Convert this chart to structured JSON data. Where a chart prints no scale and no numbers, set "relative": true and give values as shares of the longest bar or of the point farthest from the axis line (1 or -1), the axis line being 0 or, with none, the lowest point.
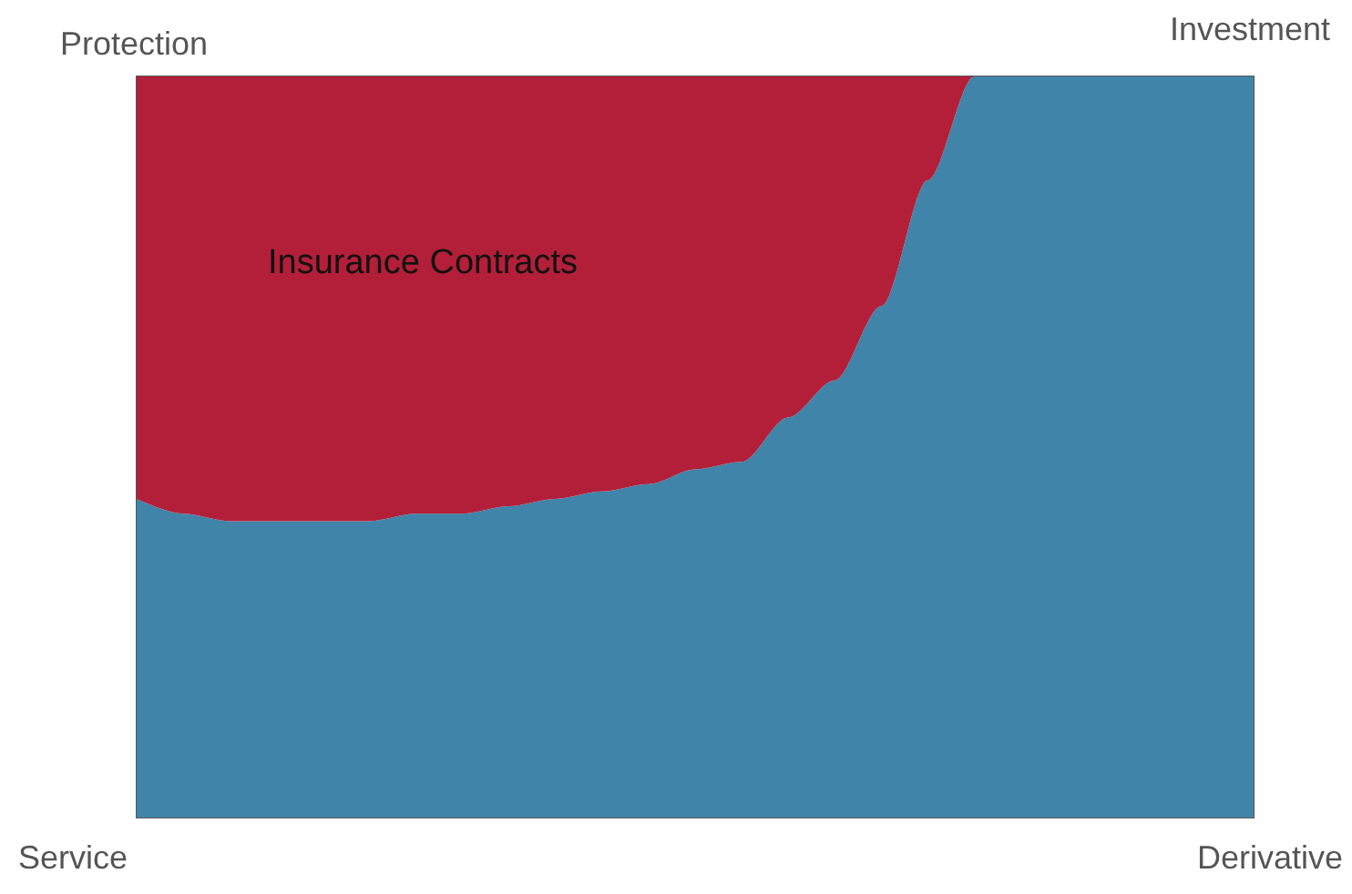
{
  "chart_data": {
    "type": "area",
    "relative": true,
    "stacked": true,
    "categories": [
      null,
      null,
      null,
      null,
      null,
      null,
      null,
      null,
      null,
      null,
      null,
      null,
      null,
      null,
      null,
      null,
      null,
      null,
      null,
      null,
      null,
      null,
      null,
      null,
      null
    ],
    "series": [
      {
        "color": "#4084aa",
        "values": [
          0.43,
          0.41,
          0.4,
          0.4,
          0.4,
          0.4,
          0.41,
          0.41,
          0.42,
          0.43,
          0.44,
          0.45,
          0.47,
          0.48,
          0.54,
          0.59,
          0.69,
          0.86,
          1,
          1,
          1,
          1,
          1,
          1,
          1
        ]
      },
      {
        "color": "#b31f38",
        "values": [
          0.57,
          0.59,
          0.6,
          0.6,
          0.6,
          0.6,
          0.59,
          0.59,
          0.58,
          0.57,
          0.56,
          0.55,
          0.53,
          0.52,
          0.46,
          0.41,
          0.31,
          0.14,
          0,
          0,
          0,
          0,
          0,
          0,
          0
        ]
      }
    ],
    "annotations": [
      "Protection",
      "Investment",
      "Service",
      "Derivative",
      "Insurance Contracts"
    ]
  }
}
